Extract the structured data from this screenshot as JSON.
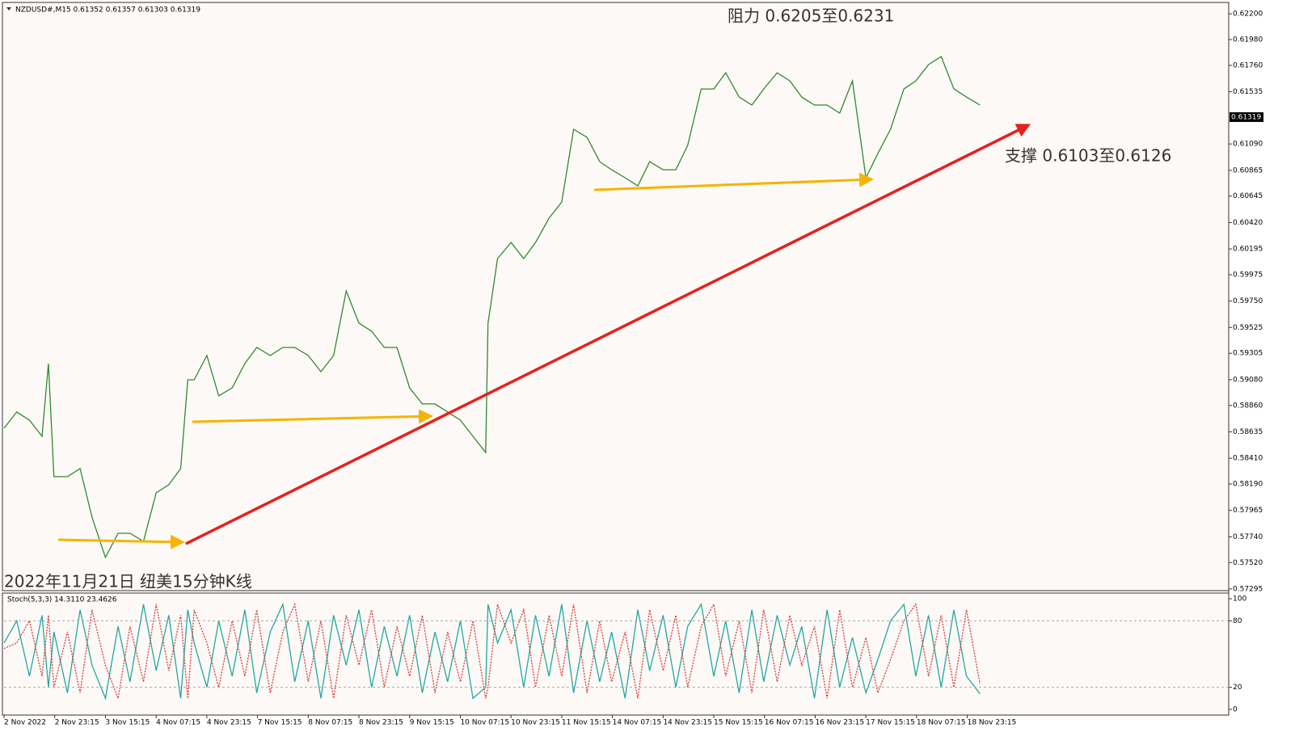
{
  "chart_data": [
    {
      "type": "line",
      "title": "NZDUSD#,M15  0.61352 0.61357 0.61303 0.61319",
      "annotations": [
        "阻力 0.6205至0.6231",
        "支撑 0.6103至0.6126",
        "2022年11月21日 纽美15分钟K线"
      ],
      "last_price": 0.61319,
      "grid": false,
      "xlim": [
        0,
        1546
      ],
      "ylim": [
        0.57281,
        0.62283
      ],
      "xticks": [
        {
          "value": 0,
          "label": "2 Nov 2022"
        },
        {
          "value": 64,
          "label": "2 Nov 23:15"
        },
        {
          "value": 128,
          "label": "3 Nov 15:15"
        },
        {
          "value": 192,
          "label": "4 Nov 07:15"
        },
        {
          "value": 256,
          "label": "4 Nov 23:15"
        },
        {
          "value": 320,
          "label": "7 Nov 15:15"
        },
        {
          "value": 384,
          "label": "8 Nov 07:15"
        },
        {
          "value": 448,
          "label": "8 Nov 23:15"
        },
        {
          "value": 512,
          "label": "9 Nov 15:15"
        },
        {
          "value": 576,
          "label": "10 Nov 07:15"
        },
        {
          "value": 640,
          "label": "10 Nov 23:15"
        },
        {
          "value": 704,
          "label": "11 Nov 15:15"
        },
        {
          "value": 768,
          "label": "14 Nov 07:15"
        },
        {
          "value": 832,
          "label": "14 Nov 23:15"
        },
        {
          "value": 896,
          "label": "15 Nov 15:15"
        },
        {
          "value": 960,
          "label": "16 Nov 07:15"
        },
        {
          "value": 1024,
          "label": "16 Nov 23:15"
        },
        {
          "value": 1088,
          "label": "17 Nov 15:15"
        },
        {
          "value": 1152,
          "label": "18 Nov 07:15"
        },
        {
          "value": 1216,
          "label": "18 Nov 23:15"
        }
      ],
      "yticks": [
        {
          "value": 0.622,
          "label": "0.62200"
        },
        {
          "value": 0.6198,
          "label": "0.61980"
        },
        {
          "value": 0.6176,
          "label": "0.61760"
        },
        0.61535,
        {
          "value": 0.6109,
          "label": "0.61090"
        },
        0.60865,
        0.60645,
        {
          "value": 0.6042,
          "label": "0.60420"
        },
        0.60195,
        0.59975,
        {
          "value": 0.5975,
          "label": "0.59750"
        },
        0.59525,
        0.59305,
        {
          "value": 0.5908,
          "label": "0.59080"
        },
        {
          "value": 0.5886,
          "label": "0.58860"
        },
        0.58635,
        {
          "value": 0.5841,
          "label": "0.58410"
        },
        {
          "value": 0.5819,
          "label": "0.58190"
        },
        0.57965,
        {
          "value": 0.5774,
          "label": "0.57740"
        },
        {
          "value": 0.5752,
          "label": "0.57520"
        },
        0.57295
      ],
      "x": [
        0,
        16,
        32,
        48,
        56,
        63,
        80,
        96,
        111,
        128,
        144,
        159,
        176,
        192,
        208,
        223,
        232,
        240,
        256,
        271,
        288,
        304,
        319,
        336,
        352,
        367,
        384,
        400,
        416,
        432,
        448,
        464,
        480,
        496,
        512,
        528,
        544,
        560,
        576,
        592,
        608,
        611,
        623,
        640,
        656,
        671,
        688,
        704,
        719,
        736,
        752,
        767,
        784,
        800,
        815,
        832,
        848,
        863,
        880,
        896,
        911,
        928,
        944,
        959,
        976,
        992,
        1007,
        1023,
        1039,
        1055,
        1071,
        1088,
        1103,
        1119,
        1136,
        1151,
        1167,
        1183,
        1199,
        1215,
        1232
      ],
      "series": [
        {
          "color": "#2f8a2f",
          "values": [
            0.58666,
            0.58804,
            0.58735,
            0.58597,
            0.59217,
            0.58253,
            0.58253,
            0.58322,
            0.57908,
            0.57564,
            0.5777,
            0.5777,
            0.57701,
            0.58115,
            0.58184,
            0.58322,
            0.59079,
            0.59079,
            0.59286,
            0.58942,
            0.5901,
            0.59217,
            0.59355,
            0.59286,
            0.59355,
            0.59355,
            0.59286,
            0.59148,
            0.59286,
            0.59837,
            0.59562,
            0.59493,
            0.59355,
            0.59355,
            0.5901,
            0.58873,
            0.58873,
            0.58804,
            0.58735,
            0.58597,
            0.58459,
            0.59562,
            0.60113,
            0.6025,
            0.60113,
            0.6025,
            0.60457,
            0.60595,
            0.61215,
            0.61146,
            0.60939,
            0.6087,
            0.60802,
            0.60733,
            0.60939,
            0.6087,
            0.6087,
            0.61077,
            0.61559,
            0.61559,
            0.61697,
            0.6149,
            0.61422,
            0.61559,
            0.61697,
            0.61628,
            0.6149,
            0.61422,
            0.61422,
            0.61353,
            0.61628,
            0.60802,
            0.61008,
            0.61215,
            0.61559,
            0.61628,
            0.61766,
            0.61835,
            0.61559,
            0.6149,
            0.61422
          ]
        }
      ]
    },
    {
      "type": "line",
      "title": "Stoch(5,3,3) 14.3110 23.4626",
      "ylim": [
        0,
        100
      ],
      "yticks": [
        0,
        20,
        80,
        100
      ],
      "levels": [
        20,
        80
      ],
      "x": [
        0,
        16,
        32,
        48,
        56,
        63,
        80,
        96,
        111,
        128,
        144,
        159,
        176,
        192,
        208,
        223,
        232,
        240,
        256,
        271,
        288,
        304,
        319,
        336,
        352,
        367,
        384,
        400,
        416,
        432,
        448,
        464,
        480,
        496,
        512,
        528,
        544,
        560,
        576,
        592,
        608,
        611,
        623,
        640,
        656,
        671,
        688,
        704,
        719,
        736,
        752,
        767,
        784,
        800,
        815,
        832,
        848,
        863,
        880,
        896,
        911,
        928,
        944,
        959,
        976,
        992,
        1007,
        1023,
        1039,
        1055,
        1071,
        1088,
        1103,
        1119,
        1136,
        1151,
        1167,
        1183,
        1199,
        1215,
        1232
      ],
      "series": [
        {
          "color": "#20a8a0",
          "values": [
            60,
            80,
            30,
            85,
            20,
            70,
            15,
            90,
            40,
            10,
            75,
            25,
            95,
            35,
            85,
            10,
            90,
            60,
            20,
            80,
            30,
            90,
            15,
            70,
            95,
            25,
            80,
            10,
            85,
            40,
            90,
            20,
            75,
            30,
            85,
            15,
            70,
            25,
            80,
            10,
            20,
            95,
            60,
            90,
            20,
            85,
            30,
            95,
            15,
            80,
            25,
            70,
            10,
            90,
            35,
            85,
            20,
            75,
            95,
            30,
            80,
            15,
            90,
            25,
            85,
            40,
            75,
            10,
            90,
            20,
            65,
            15,
            45,
            80,
            95,
            30,
            85,
            20,
            90,
            30,
            14
          ]
        },
        {
          "color": "#d23c3c",
          "dashed": true,
          "values": [
            55,
            60,
            80,
            30,
            85,
            20,
            70,
            15,
            90,
            40,
            10,
            75,
            25,
            95,
            35,
            85,
            10,
            90,
            60,
            20,
            80,
            30,
            90,
            15,
            70,
            95,
            25,
            80,
            10,
            85,
            40,
            90,
            20,
            75,
            30,
            85,
            15,
            70,
            25,
            80,
            10,
            20,
            95,
            60,
            90,
            20,
            85,
            30,
            95,
            15,
            80,
            25,
            70,
            10,
            90,
            35,
            85,
            20,
            75,
            95,
            30,
            80,
            15,
            90,
            25,
            85,
            40,
            75,
            10,
            90,
            20,
            65,
            15,
            45,
            80,
            95,
            30,
            85,
            20,
            90,
            23
          ]
        }
      ]
    }
  ]
}
